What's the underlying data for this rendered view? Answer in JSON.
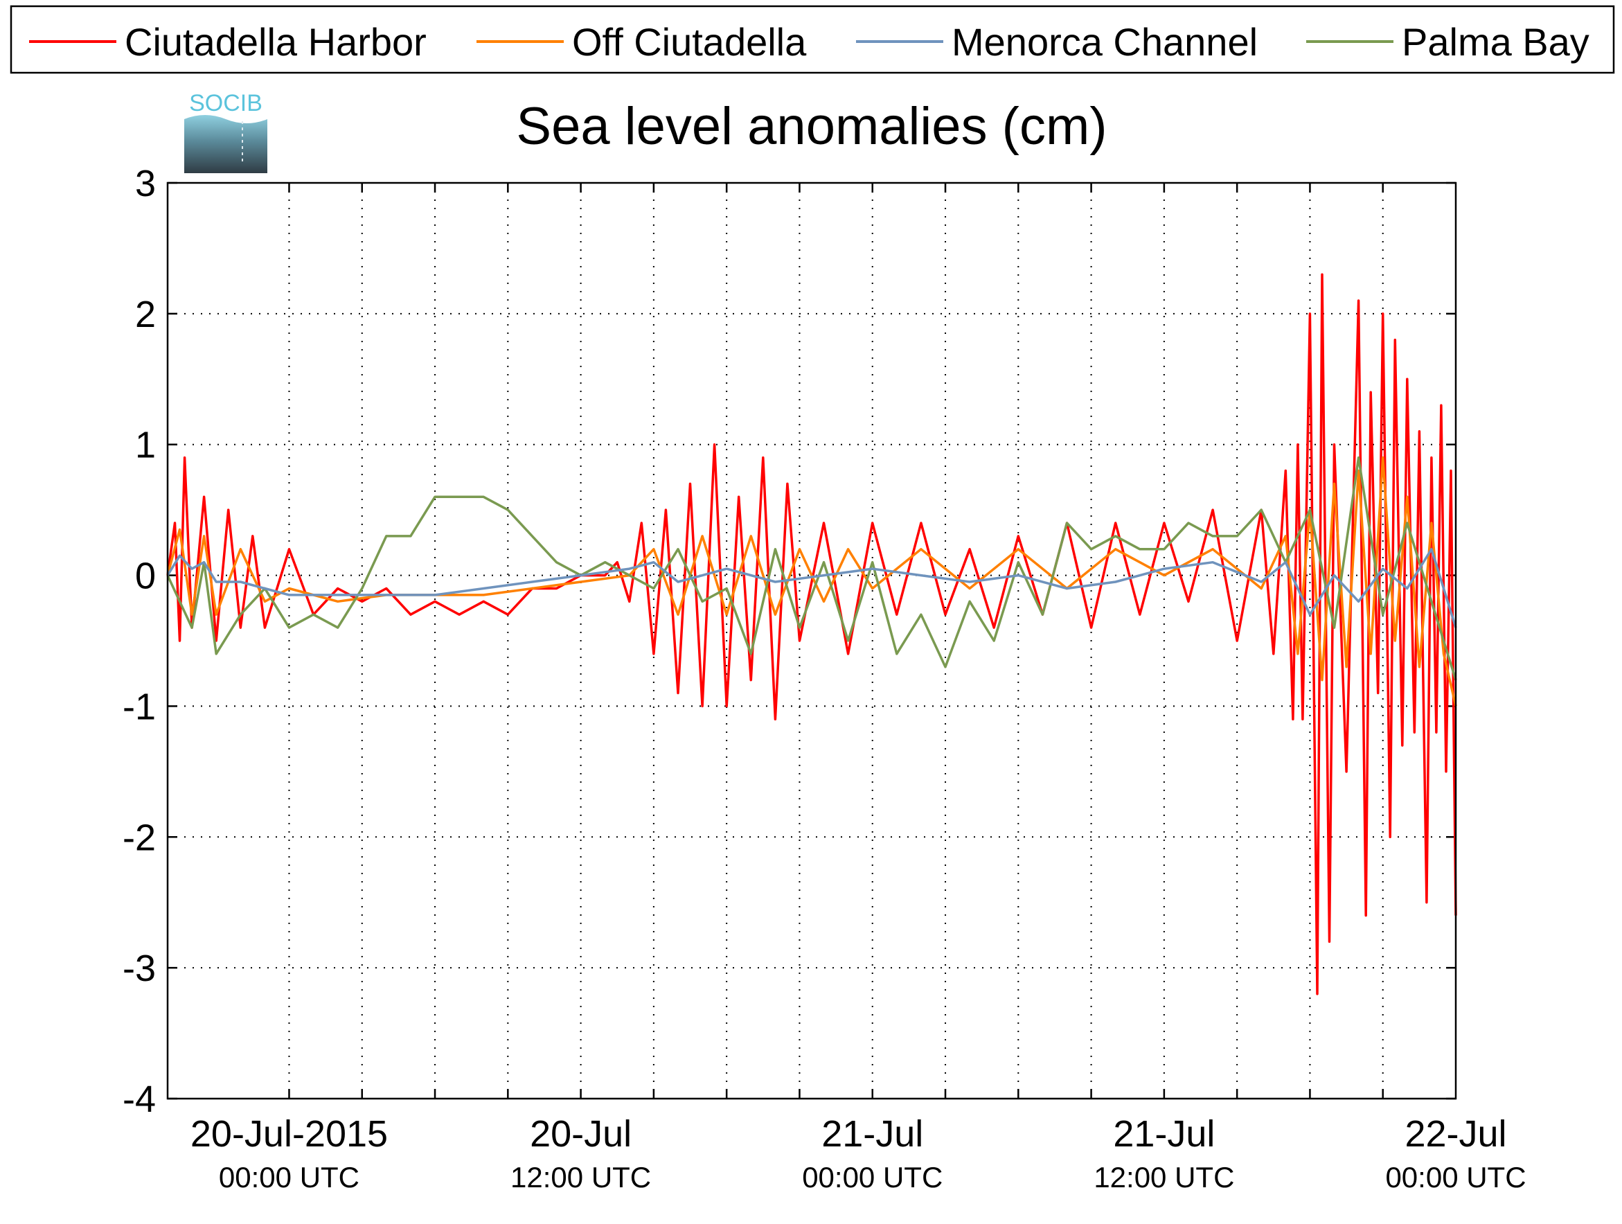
{
  "chart_data": {
    "type": "line",
    "title": "Sea level anomalies (cm)",
    "xlabel": "",
    "ylabel": "",
    "x_unit": "hours since 20-Jul-2015 00:00 UTC",
    "xlim": [
      -5,
      48
    ],
    "ylim": [
      -4,
      3
    ],
    "y_ticks": [
      "3",
      "2",
      "1",
      "0",
      "-1",
      "-2",
      "-3",
      "-4"
    ],
    "x_tick_labels": [
      {
        "hour": 0,
        "date": "20-Jul-2015",
        "time": "00:00 UTC"
      },
      {
        "hour": 12,
        "date": "20-Jul",
        "time": "12:00 UTC"
      },
      {
        "hour": 24,
        "date": "21-Jul",
        "time": "00:00 UTC"
      },
      {
        "hour": 36,
        "date": "21-Jul",
        "time": "12:00 UTC"
      },
      {
        "hour": 48,
        "date": "22-Jul",
        "time": "00:00 UTC"
      }
    ],
    "grid": true,
    "legend_position": "top",
    "logo_text": "SOCIB",
    "series": [
      {
        "name": "Ciutadella Harbor",
        "color": "#ff0000",
        "x": [
          -5,
          -4.7,
          -4.5,
          -4.3,
          -4,
          -3.5,
          -3,
          -2.5,
          -2,
          -1.5,
          -1,
          0,
          1,
          2,
          3,
          4,
          5,
          6,
          7,
          8,
          9,
          10,
          11,
          12,
          13,
          13.5,
          14,
          14.5,
          15,
          15.5,
          16,
          16.5,
          17,
          17.5,
          18,
          18.5,
          19,
          19.5,
          20,
          20.5,
          21,
          22,
          23,
          24,
          25,
          26,
          27,
          28,
          29,
          30,
          31,
          32,
          33,
          34,
          35,
          36,
          37,
          38,
          39,
          40,
          40.5,
          41,
          41.3,
          41.5,
          41.7,
          42,
          42.3,
          42.5,
          42.8,
          43,
          43.5,
          44,
          44.3,
          44.5,
          44.8,
          45,
          45.3,
          45.5,
          45.8,
          46,
          46.3,
          46.5,
          46.8,
          47,
          47.2,
          47.4,
          47.6,
          47.8,
          48
        ],
        "values": [
          0,
          0.4,
          -0.5,
          0.9,
          -0.4,
          0.6,
          -0.5,
          0.5,
          -0.4,
          0.3,
          -0.4,
          0.2,
          -0.3,
          -0.1,
          -0.2,
          -0.1,
          -0.3,
          -0.2,
          -0.3,
          -0.2,
          -0.3,
          -0.1,
          -0.1,
          0,
          0,
          0.1,
          -0.2,
          0.4,
          -0.6,
          0.5,
          -0.9,
          0.7,
          -1.0,
          1.0,
          -1.0,
          0.6,
          -0.8,
          0.9,
          -1.1,
          0.7,
          -0.5,
          0.4,
          -0.6,
          0.4,
          -0.3,
          0.4,
          -0.3,
          0.2,
          -0.4,
          0.3,
          -0.3,
          0.4,
          -0.4,
          0.4,
          -0.3,
          0.4,
          -0.2,
          0.5,
          -0.5,
          0.5,
          -0.6,
          0.8,
          -1.1,
          1.0,
          -1.1,
          2.0,
          -3.2,
          2.3,
          -2.8,
          1.0,
          -1.5,
          2.1,
          -2.6,
          1.4,
          -0.9,
          2.0,
          -2.0,
          1.8,
          -1.3,
          1.5,
          -1.2,
          1.1,
          -2.5,
          0.9,
          -1.2,
          1.3,
          -1.5,
          0.8,
          -2.6
        ]
      },
      {
        "name": "Off Ciutadella",
        "color": "#ff8000",
        "x": [
          -5,
          -4.5,
          -4,
          -3.5,
          -3,
          -2,
          -1,
          0,
          2,
          4,
          6,
          8,
          10,
          12,
          14,
          15,
          16,
          17,
          18,
          19,
          20,
          21,
          22,
          23,
          24,
          26,
          28,
          30,
          32,
          34,
          36,
          38,
          40,
          41,
          41.5,
          42,
          42.5,
          43,
          43.5,
          44,
          44.5,
          45,
          45.5,
          46,
          46.5,
          47,
          47.5,
          48
        ],
        "values": [
          0,
          0.35,
          -0.3,
          0.3,
          -0.3,
          0.2,
          -0.2,
          -0.1,
          -0.2,
          -0.15,
          -0.15,
          -0.15,
          -0.1,
          -0.05,
          0,
          0.2,
          -0.3,
          0.3,
          -0.3,
          0.3,
          -0.3,
          0.2,
          -0.2,
          0.2,
          -0.1,
          0.2,
          -0.1,
          0.2,
          -0.1,
          0.2,
          0,
          0.2,
          -0.1,
          0.3,
          -0.6,
          0.5,
          -0.8,
          0.7,
          -0.7,
          0.8,
          -0.6,
          0.9,
          -0.5,
          0.6,
          -0.7,
          0.4,
          -0.6,
          -1.0
        ]
      },
      {
        "name": "Menorca Channel",
        "color": "#6f93bd",
        "x": [
          -5,
          -4.5,
          -4,
          -3.5,
          -3,
          -2,
          -1,
          0,
          2,
          4,
          6,
          8,
          10,
          12,
          14,
          15,
          16,
          18,
          20,
          22,
          24,
          26,
          28,
          30,
          32,
          34,
          36,
          38,
          40,
          41,
          42,
          43,
          44,
          45,
          46,
          47,
          48
        ],
        "values": [
          0,
          0.15,
          0.05,
          0.1,
          -0.05,
          -0.05,
          -0.1,
          -0.15,
          -0.15,
          -0.15,
          -0.15,
          -0.1,
          -0.05,
          0,
          0.05,
          0.1,
          -0.05,
          0.05,
          -0.05,
          0,
          0.05,
          0,
          -0.05,
          0,
          -0.1,
          -0.05,
          0.05,
          0.1,
          -0.05,
          0.1,
          -0.3,
          0,
          -0.2,
          0.05,
          -0.1,
          0.2,
          -0.4
        ]
      },
      {
        "name": "Palma Bay",
        "color": "#7a9a50",
        "x": [
          -5,
          -4.5,
          -4,
          -3.5,
          -3,
          -2,
          -1,
          0,
          1,
          2,
          3,
          4,
          5,
          6,
          7,
          8,
          9,
          10,
          11,
          12,
          13,
          14,
          15,
          16,
          17,
          18,
          19,
          20,
          21,
          22,
          23,
          24,
          25,
          26,
          27,
          28,
          29,
          30,
          31,
          32,
          33,
          34,
          35,
          36,
          37,
          38,
          39,
          40,
          41,
          42,
          43,
          44,
          45,
          46,
          47,
          48
        ],
        "values": [
          0,
          -0.2,
          -0.4,
          0.1,
          -0.6,
          -0.3,
          -0.1,
          -0.4,
          -0.3,
          -0.4,
          -0.1,
          0.3,
          0.3,
          0.6,
          0.6,
          0.6,
          0.5,
          0.3,
          0.1,
          0,
          0.1,
          0,
          -0.1,
          0.2,
          -0.2,
          -0.1,
          -0.6,
          0.2,
          -0.4,
          0.1,
          -0.5,
          0.1,
          -0.6,
          -0.3,
          -0.7,
          -0.2,
          -0.5,
          0.1,
          -0.3,
          0.4,
          0.2,
          0.3,
          0.2,
          0.2,
          0.4,
          0.3,
          0.3,
          0.5,
          0.1,
          0.5,
          -0.4,
          0.9,
          -0.3,
          0.4,
          -0.2,
          -0.8
        ]
      }
    ]
  }
}
